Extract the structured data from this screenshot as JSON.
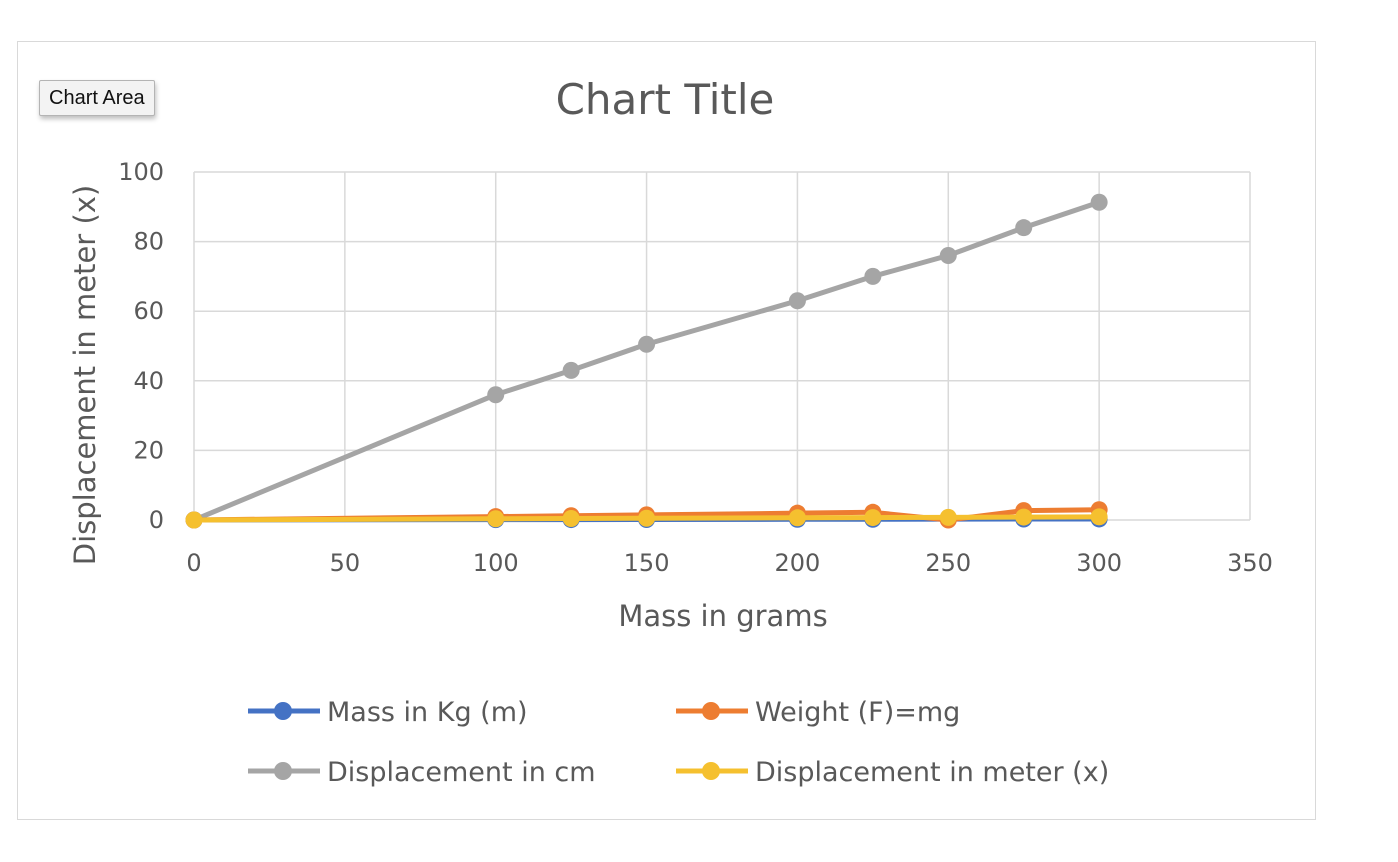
{
  "tooltip": {
    "label": "Chart Area"
  },
  "chart_data": {
    "type": "line",
    "title": "Chart Title",
    "xlabel": "Mass in grams",
    "ylabel": "Displacement in meter (x)",
    "xlim": [
      0,
      350
    ],
    "ylim": [
      0,
      100
    ],
    "xticks": [
      0,
      50,
      100,
      150,
      200,
      250,
      300,
      350
    ],
    "yticks": [
      0,
      20,
      40,
      60,
      80,
      100
    ],
    "grid": true,
    "legend_position": "bottom",
    "x": [
      0,
      100,
      125,
      150,
      200,
      225,
      250,
      275,
      300
    ],
    "series": [
      {
        "name": "Mass in Kg (m)",
        "color": "#4472c4",
        "values": [
          0,
          0.1,
          0.125,
          0.15,
          0.2,
          0.225,
          0.25,
          0.275,
          0.3
        ]
      },
      {
        "name": "Weight (F)=mg",
        "color": "#ed7d31",
        "values": [
          0,
          0.98,
          1.23,
          1.47,
          1.96,
          2.21,
          0,
          2.7,
          2.94
        ]
      },
      {
        "name": "Displacement in cm",
        "color": "#a5a5a5",
        "values": [
          0,
          36,
          43,
          50.5,
          63,
          70,
          76,
          84,
          91.3
        ]
      },
      {
        "name": "Displacement in meter (x)",
        "color": "#f5c02f",
        "values": [
          0,
          0.36,
          0.43,
          0.505,
          0.63,
          0.7,
          0.76,
          0.84,
          0.913
        ]
      }
    ]
  }
}
